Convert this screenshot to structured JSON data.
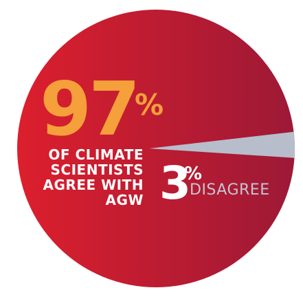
{
  "colors": {
    "agree_light": "#dc1f2d",
    "agree_dark": "#9d1936",
    "disagree": "#b8bdcc",
    "highlight": "#f5a03a",
    "label_white": "#ffffff",
    "disagree_text": "#c3c6d4"
  },
  "chart_data": {
    "type": "pie",
    "title": "",
    "categories": [
      "OF CLIMATE SCIENTISTS AGREE WITH AGW",
      "DISAGREE"
    ],
    "values": [
      97,
      3
    ],
    "slices": [
      {
        "value_text": "97",
        "percent_sign": "%",
        "label_lines": [
          "OF CLIMATE",
          "SCIENTISTS",
          "AGREE WITH",
          "AGW"
        ]
      },
      {
        "value_text": "3",
        "percent_sign": "%",
        "label": "DISAGREE"
      }
    ],
    "legend": "none"
  }
}
